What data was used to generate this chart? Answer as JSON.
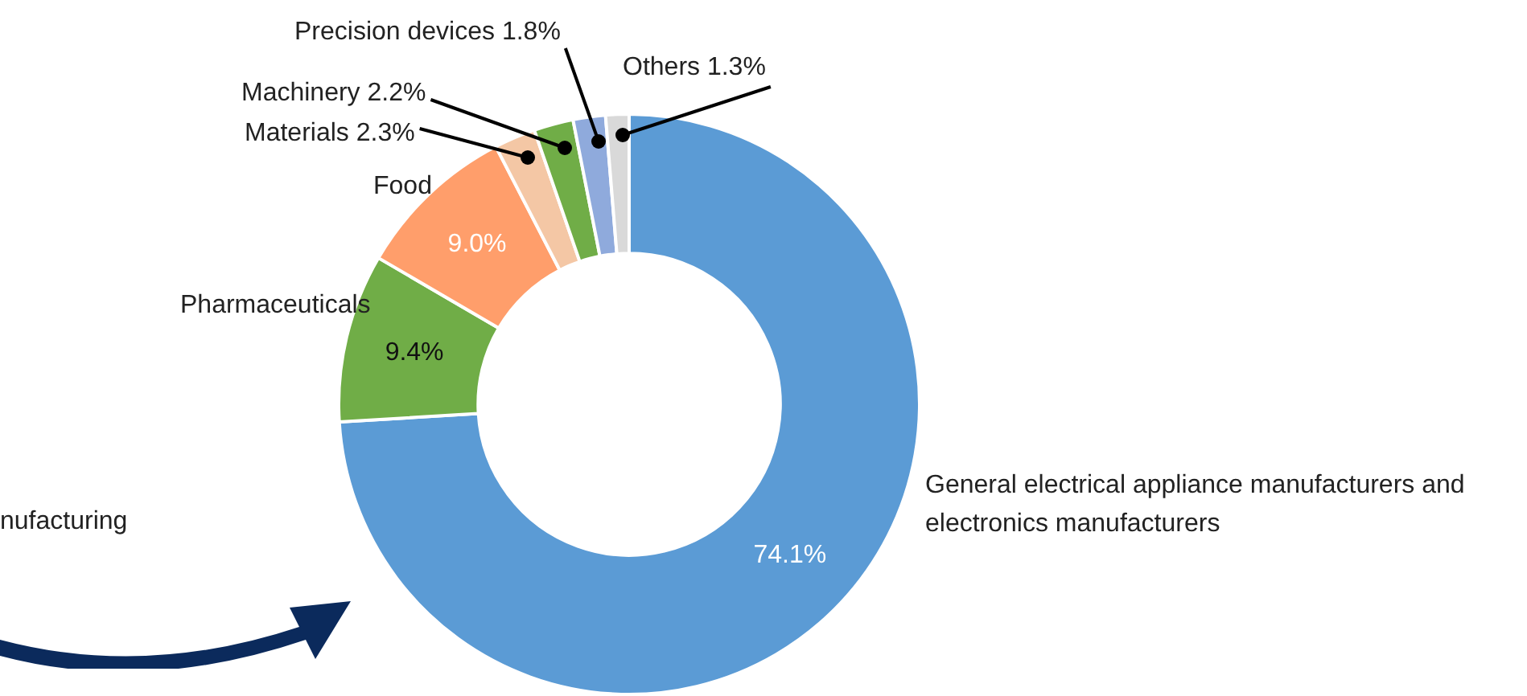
{
  "chart_data": {
    "type": "donut",
    "categories": [
      "General electrical appliance manufacturers and electronics manufacturers",
      "Pharmaceuticals",
      "Food",
      "Materials",
      "Machinery",
      "Precision devices",
      "Others"
    ],
    "values": [
      74.1,
      9.4,
      9.0,
      2.3,
      2.2,
      1.8,
      1.3
    ],
    "value_labels": [
      "74.1%",
      "9.4%",
      "9.0%",
      "2.3%",
      "2.2%",
      "1.8%",
      "1.3%"
    ],
    "colors": [
      "#5b9bd5",
      "#70ad47",
      "#ff9e6b",
      "#f4c7a5",
      "#70ad47",
      "#8faadc",
      "#d9d9d9"
    ],
    "annotations": [
      "nufacturing"
    ],
    "legend": false
  }
}
